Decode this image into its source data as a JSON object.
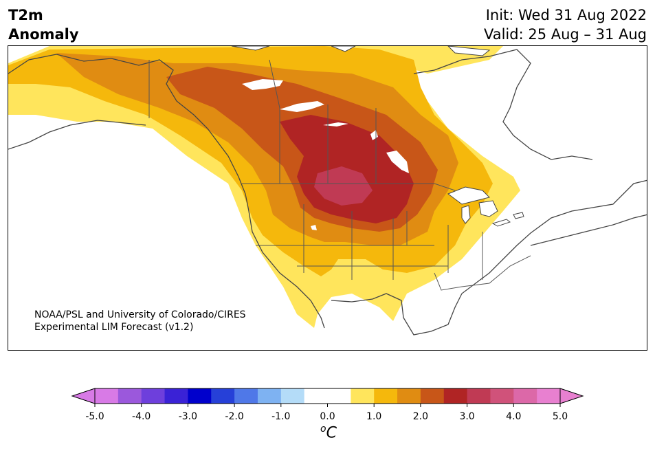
{
  "title": {
    "left_line1": "T2m",
    "left_line2": "Anomaly",
    "init": "Init: Wed 31 Aug 2022",
    "valid": "Valid: 25 Aug – 31 Aug"
  },
  "credit": {
    "line1": "NOAA/PSL and University of Colorado/CIRES",
    "line2": "Experimental LIM Forecast (v1.2)"
  },
  "colorbar": {
    "unit_sup": "o",
    "unit": "C",
    "ticks": [
      "-5.0",
      "-4.0",
      "-3.0",
      "-2.0",
      "-1.0",
      "0.0",
      "1.0",
      "2.0",
      "3.0",
      "4.0",
      "5.0"
    ],
    "colors": [
      "#d87ae6",
      "#9b58dc",
      "#6e3fdc",
      "#3a22d6",
      "#0000cc",
      "#2640d8",
      "#4f78e8",
      "#7eb2f2",
      "#b4dcf8",
      "#ffffff",
      "#ffffff",
      "#ffe55c",
      "#f5b80c",
      "#e08c12",
      "#c85618",
      "#b02424",
      "#c03a54",
      "#d0527a",
      "#dc68a8",
      "#e880d0"
    ],
    "under_color": "#d87ae6",
    "over_color": "#e880d0"
  },
  "anomaly_field": {
    "levels_C": [
      0.5,
      1.0,
      1.5,
      2.0,
      2.5,
      3.0
    ],
    "fill_colors": [
      "#ffe55c",
      "#f5b80c",
      "#e08c12",
      "#c85618",
      "#b02424",
      "#c03a54"
    ],
    "max_center": "Northern Great Plains / Southern Prairies",
    "max_value_C": 3.0
  }
}
